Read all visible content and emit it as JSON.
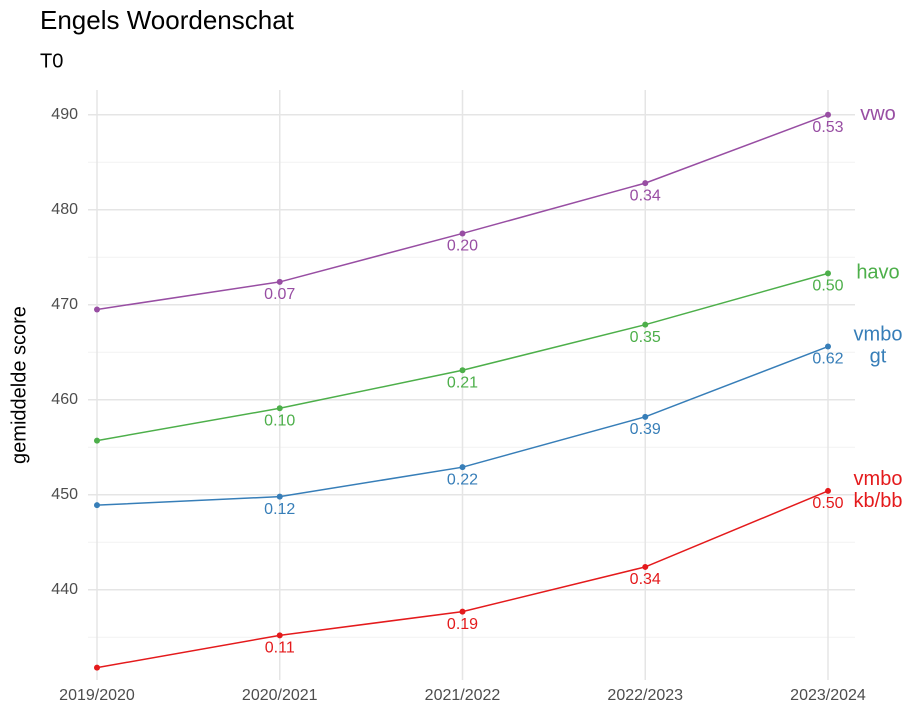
{
  "chart_data": {
    "type": "line",
    "title": "Engels Woordenschat",
    "subtitle": "T0",
    "y_label": "gemiddelde score",
    "categories": [
      "2019/2020",
      "2020/2021",
      "2021/2022",
      "2022/2023",
      "2023/2024"
    ],
    "ylim": [
      430.5,
      492.6
    ],
    "yticks": [
      440,
      450,
      460,
      470,
      480,
      490
    ],
    "grid": true,
    "series": [
      {
        "name": "vwo",
        "color": "#984ea3",
        "values": [
          469.5,
          472.4,
          477.5,
          482.8,
          490.0
        ],
        "point_labels": [
          null,
          "0.07",
          "0.20",
          "0.34",
          "0.53"
        ]
      },
      {
        "name": "havo",
        "color": "#4daf4a",
        "values": [
          455.7,
          459.1,
          463.1,
          467.9,
          473.3
        ],
        "point_labels": [
          null,
          "0.10",
          "0.21",
          "0.35",
          "0.50"
        ]
      },
      {
        "name": "vmbo gt",
        "color": "#377eb8",
        "values": [
          448.9,
          449.8,
          452.9,
          458.2,
          465.6
        ],
        "point_labels": [
          null,
          "0.12",
          "0.22",
          "0.39",
          "0.62"
        ]
      },
      {
        "name": "vmbo kb/bb",
        "color": "#e41a1c",
        "values": [
          431.8,
          435.2,
          437.7,
          442.4,
          450.4
        ],
        "point_labels": [
          null,
          "0.11",
          "0.19",
          "0.34",
          "0.50"
        ]
      }
    ]
  }
}
